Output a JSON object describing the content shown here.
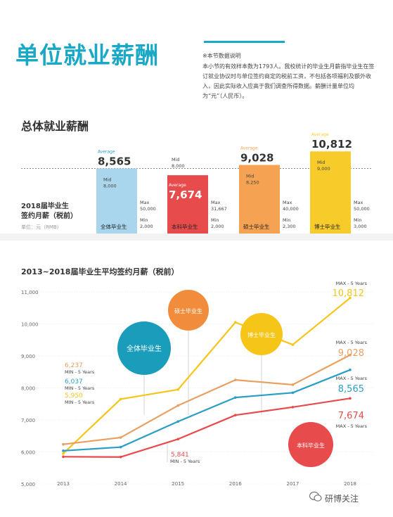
{
  "page": {
    "title": "单位就业薪酬",
    "note_title": "※本节数据说明",
    "note_body": "本小节的有效样本数为1793人。我校统计的毕业生月薪指毕业生在签订就业协议时与单位签约商定的税前工资，不包括各项福利及额外收入，因此实际收入应高于我们调查所得数据。薪酬计量单位均为“元”（人民币）。",
    "section1_title": "总体就业薪酬",
    "left_label_1": "2018届毕业生",
    "left_label_2": "签约月薪（税前）",
    "left_unit": "单位：元（RMB）",
    "section2_title": "2013~2018届毕业生平均签约月薪（税前）",
    "watermark": "研博关注"
  },
  "colors": {
    "accent": "#1aa8c7",
    "overall": "#2a9fc4",
    "bachelor": "#e84b4b",
    "master": "#f0a050",
    "phd": "#f5c518"
  },
  "chart_data": [
    {
      "type": "bar",
      "title": "总体就业薪酬",
      "average_label": "Average",
      "mid_label": "Mid",
      "max_label": "Max",
      "min_label": "Min",
      "reference_line": 8565,
      "bars": [
        {
          "name": "全体毕业生",
          "average": "8,565",
          "average_value": 8565,
          "mid": "8,000",
          "max": "50,000",
          "min": "2,000",
          "color": "#a9d6ec"
        },
        {
          "name": "本科毕业生",
          "average": "7,674",
          "average_value": 7674,
          "mid": "8,000",
          "max": "31,667",
          "min": "2,000",
          "color": "#e84b4b"
        },
        {
          "name": "硕士毕业生",
          "average": "9,028",
          "average_value": 9028,
          "mid": "8,250",
          "max": "40,000",
          "min": "2,300",
          "color": "#f5a352"
        },
        {
          "name": "博士毕业生",
          "average": "10,812",
          "average_value": 10812,
          "mid": "9,000",
          "max": "50,000",
          "min": "3,000",
          "color": "#f7cc2a"
        }
      ]
    },
    {
      "type": "line",
      "title": "2013~2018届毕业生平均签约月薪（税前）",
      "x": [
        "2013",
        "2014",
        "2015",
        "2016",
        "2017",
        "2018"
      ],
      "ylim": [
        5000,
        11000
      ],
      "yticks": [
        "5,000",
        "6,000",
        "7,000",
        "8,000",
        "9,000",
        "10,000",
        "11,000"
      ],
      "series": [
        {
          "name": "博士毕业生",
          "color": "#f5c518",
          "values": [
            5950,
            7650,
            7950,
            10050,
            9350,
            10812
          ]
        },
        {
          "name": "硕士毕业生",
          "color": "#e8a060",
          "values": [
            6237,
            6450,
            7450,
            8250,
            8100,
            9028
          ]
        },
        {
          "name": "全体毕业生",
          "color": "#2a9fc4",
          "values": [
            6037,
            6150,
            6950,
            7700,
            7850,
            8565
          ]
        },
        {
          "name": "本科毕业生",
          "color": "#e84b4b",
          "values": [
            5850,
            5841,
            6400,
            7150,
            7400,
            7674
          ]
        }
      ],
      "annotations": [
        {
          "text": "6,237",
          "sub": "MIN - 5 Years",
          "color": "#e8a060"
        },
        {
          "text": "6,037",
          "sub": "MIN - 5 Years",
          "color": "#2a9fc4"
        },
        {
          "text": "5,950",
          "sub": "MIN - 5 Years",
          "color": "#f5c518"
        },
        {
          "text": "5,841",
          "sub": "MIN - 5 Years",
          "color": "#e84b4b"
        },
        {
          "text": "10,812",
          "sub": "MAX - 5 Years",
          "color": "#f5c518"
        },
        {
          "text": "9,028",
          "sub": "MAX - 5 Years",
          "color": "#e8a060"
        },
        {
          "text": "8,565",
          "sub": "MAX - 5 Years",
          "color": "#2a9fc4"
        },
        {
          "text": "7,674",
          "sub": "MAX - 5 Years",
          "color": "#e84b4b"
        }
      ]
    }
  ]
}
